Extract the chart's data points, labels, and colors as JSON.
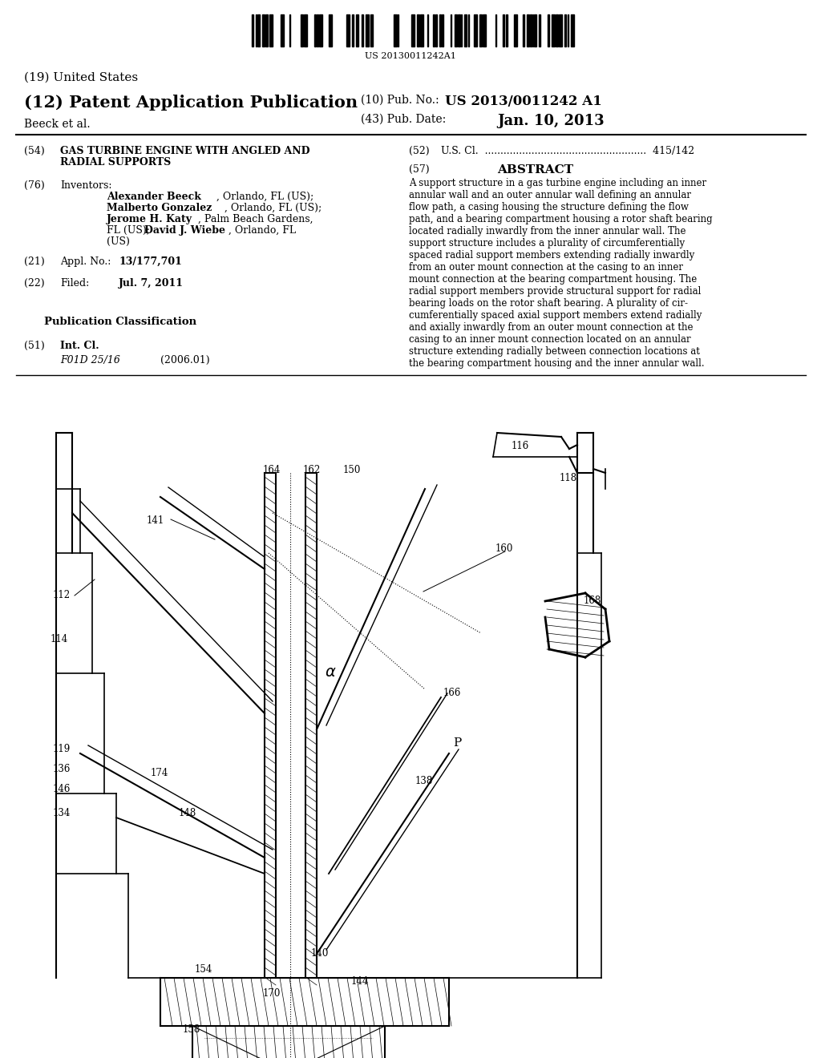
{
  "barcode_text": "US 20130011242A1",
  "title_19": "(19) United States",
  "title_12": "(12) Patent Application Publication",
  "pub_no_label": "(10) Pub. No.:",
  "pub_no_value": "US 2013/0011242 A1",
  "pub_date_label": "(43) Pub. Date:",
  "pub_date_value": "Jan. 10, 2013",
  "author": "Beeck et al.",
  "section54_label": "(54)",
  "section54_line1": "GAS TURBINE ENGINE WITH ANGLED AND",
  "section54_line2": "RADIAL SUPPORTS",
  "section52_label": "(52)",
  "section52_text": "U.S. Cl.  ....................................................  415/142",
  "section57_label": "(57)",
  "section57_title": "ABSTRACT",
  "abstract_text": "A support structure in a gas turbine engine including an inner\nannular wall and an outer annular wall defining an annular\nflow path, a casing housing the structure defining the flow\npath, and a bearing compartment housing a rotor shaft bearing\nlocated radially inwardly from the inner annular wall. The\nsupport structure includes a plurality of circumferentially\nspaced radial support members extending radially inwardly\nfrom an outer mount connection at the casing to an inner\nmount connection at the bearing compartment housing. The\nradial support members provide structural support for radial\nbearing loads on the rotor shaft bearing. A plurality of cir-\ncumferentially spaced axial support members extend radially\nand axially inwardly from an outer mount connection at the\ncasing to an inner mount connection located on an annular\nstructure extending radially between connection locations at\nthe bearing compartment housing and the inner annular wall.",
  "section76_label": "(76)",
  "section21_label": "(21)",
  "section21_appl": "Appl. No.:",
  "section21_num": "13/177,701",
  "section22_label": "(22)",
  "section22_filed": "Filed:",
  "section22_date": "Jul. 7, 2011",
  "pub_class_title": "Publication Classification",
  "section51_label": "(51)",
  "section51_int_cl": "Int. Cl.",
  "section51_class": "F01D 25/16",
  "section51_year": "(2006.01)",
  "bg_color": "#ffffff",
  "text_color": "#000000"
}
